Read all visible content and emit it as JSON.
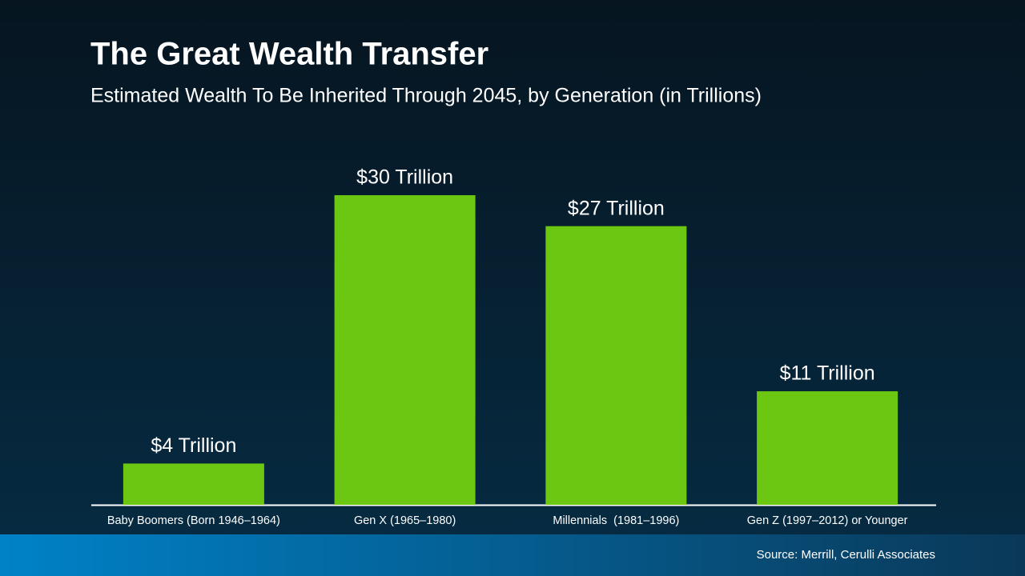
{
  "chart_data": {
    "type": "bar",
    "title": "The Great Wealth Transfer",
    "subtitle": "Estimated Wealth To Be Inherited Through 2045, by Generation (in Trillions)",
    "categories": [
      "Baby Boomers (Born 1946–1964)",
      "Gen X (1965–1980)",
      "Millennials  (1981–1996)",
      "Gen Z (1997–2012) or Younger"
    ],
    "values": [
      4,
      30,
      27,
      11
    ],
    "value_labels": [
      "$4 Trillion",
      "$30 Trillion",
      "$27 Trillion",
      "$11 Trillion"
    ],
    "color": "#6cc712",
    "source": "Source: Merrill,  Cerulli Associates"
  }
}
